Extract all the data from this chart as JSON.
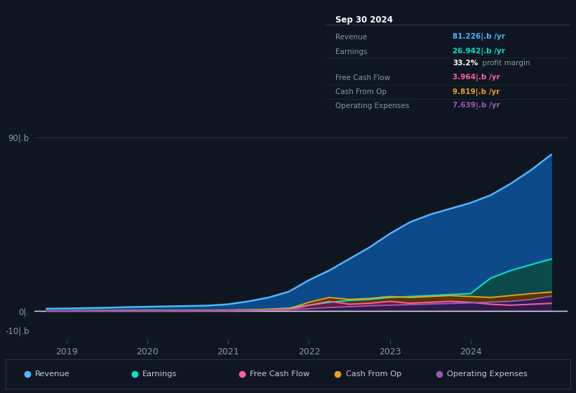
{
  "bg_color": "#0e1621",
  "plot_bg_color": "#0e1621",
  "series": {
    "x": [
      2018.75,
      2019.0,
      2019.25,
      2019.5,
      2019.75,
      2020.0,
      2020.25,
      2020.5,
      2020.75,
      2021.0,
      2021.25,
      2021.5,
      2021.75,
      2022.0,
      2022.25,
      2022.5,
      2022.75,
      2023.0,
      2023.25,
      2023.5,
      2023.75,
      2024.0,
      2024.25,
      2024.5,
      2024.75,
      2025.0
    ],
    "revenue": [
      1.2,
      1.3,
      1.5,
      1.7,
      2.0,
      2.2,
      2.4,
      2.6,
      2.8,
      3.5,
      5.0,
      7.0,
      10.0,
      16.0,
      21.0,
      27.0,
      33.0,
      40.0,
      46.0,
      50.0,
      53.0,
      56.0,
      60.0,
      66.0,
      73.0,
      81.0
    ],
    "earnings": [
      0.05,
      0.05,
      0.08,
      0.08,
      0.1,
      0.1,
      0.1,
      0.1,
      0.15,
      0.3,
      0.5,
      0.9,
      1.5,
      3.0,
      4.5,
      5.5,
      6.0,
      7.0,
      7.5,
      8.0,
      8.5,
      9.0,
      17.0,
      21.0,
      24.0,
      26.9
    ],
    "free_cash_flow": [
      0.02,
      0.02,
      0.05,
      0.05,
      0.05,
      0.05,
      0.05,
      0.05,
      0.05,
      0.1,
      0.2,
      0.4,
      0.6,
      3.0,
      5.0,
      3.5,
      4.0,
      5.0,
      4.0,
      4.5,
      5.0,
      4.5,
      3.5,
      3.0,
      3.5,
      3.96
    ],
    "cash_from_op": [
      0.1,
      0.1,
      0.2,
      0.2,
      0.3,
      0.3,
      0.3,
      0.3,
      0.4,
      0.5,
      0.7,
      0.9,
      1.2,
      4.5,
      7.0,
      6.0,
      6.5,
      7.5,
      7.0,
      7.5,
      8.0,
      7.5,
      7.0,
      8.0,
      9.0,
      9.82
    ],
    "op_expenses": [
      0.08,
      0.08,
      0.1,
      0.15,
      0.15,
      0.15,
      0.15,
      0.2,
      0.2,
      0.3,
      0.4,
      0.5,
      0.7,
      1.2,
      1.8,
      2.2,
      2.7,
      3.0,
      3.3,
      3.6,
      3.9,
      4.2,
      4.6,
      5.0,
      6.0,
      7.64
    ]
  },
  "revenue_fill": "#0d4a8a",
  "revenue_line": "#4db8ff",
  "earnings_fill": "#0a4a4a",
  "earnings_line": "#00e5cc",
  "fcf_fill": "#6b1a3a",
  "fcf_line": "#ff5fa0",
  "cfop_fill": "#5a3500",
  "cfop_line": "#e8a020",
  "opex_fill": "#2d1b4e",
  "opex_line": "#9b59b6",
  "ytick_labels": [
    "90|.b",
    "0|.",
    "-10|.b"
  ],
  "ytick_vals": [
    90,
    0,
    -10
  ],
  "xtick_vals": [
    2019,
    2020,
    2021,
    2022,
    2023,
    2024
  ],
  "ylim": [
    -15,
    98
  ],
  "xlim": [
    2018.6,
    2025.2
  ],
  "info_box": {
    "date": "Sep 30 2024",
    "rows": [
      {
        "label": "Revenue",
        "value": "81.226|.b /yr",
        "color": "#4db8ff"
      },
      {
        "label": "Earnings",
        "value": "26.942|.b /yr",
        "color": "#00e5cc"
      },
      {
        "label": "",
        "value": "33.2% profit margin",
        "color": "#ffffff"
      },
      {
        "label": "Free Cash Flow",
        "value": "3.964|.b /yr",
        "color": "#ff5fa0"
      },
      {
        "label": "Cash From Op",
        "value": "9.819|.b /yr",
        "color": "#e8a020"
      },
      {
        "label": "Operating Expenses",
        "value": "7.639|.b /yr",
        "color": "#9b59b6"
      }
    ]
  },
  "legend": [
    {
      "label": "Revenue",
      "color": "#4db8ff"
    },
    {
      "label": "Earnings",
      "color": "#00e5cc"
    },
    {
      "label": "Free Cash Flow",
      "color": "#ff5fa0"
    },
    {
      "label": "Cash From Op",
      "color": "#e8a020"
    },
    {
      "label": "Operating Expenses",
      "color": "#9b59b6"
    }
  ]
}
